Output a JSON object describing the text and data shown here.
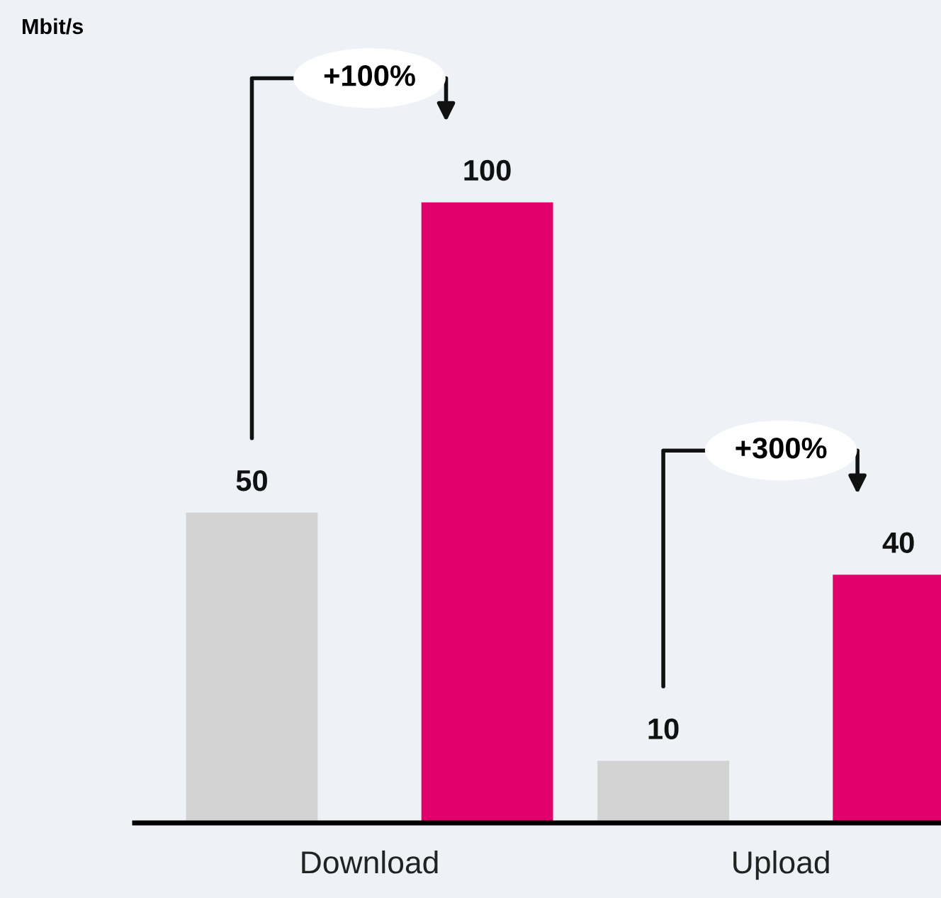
{
  "chart_data": {
    "type": "bar",
    "categories": [
      "Download",
      "Upload"
    ],
    "series": [
      {
        "color": "#d3d3d3",
        "values": [
          50,
          10
        ]
      },
      {
        "color": "#e2006d",
        "values": [
          100,
          40
        ]
      }
    ],
    "data_labels": true,
    "annotations": [
      "Mbit/s",
      "+100%",
      "+300%"
    ]
  }
}
